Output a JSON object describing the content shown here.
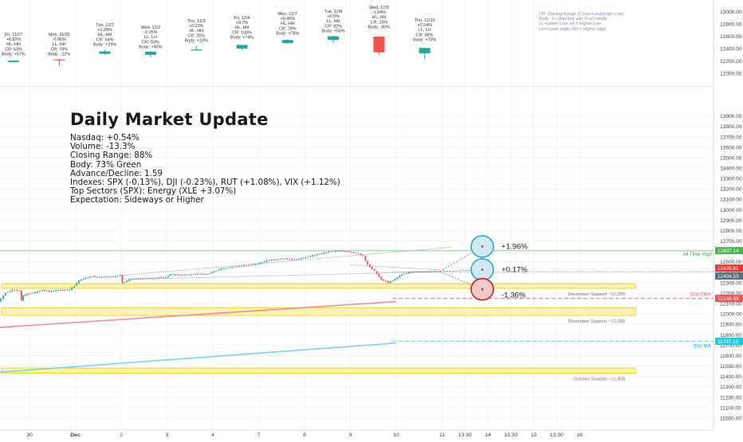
{
  "colors": {
    "bull": "#26a69a",
    "bear": "#ef5350",
    "price_line": "#2e3a46",
    "ath": "#9fd7a4",
    "ema21": "#f28c9b",
    "ma50": "#7fd3e6",
    "support_fill": "#fff3b0",
    "support_stroke": "#f0c419",
    "scenario_up_fill": "#cfe9f2",
    "scenario_up_stroke": "#2a9fc9",
    "scenario_down_fill": "#f6c9c9",
    "scenario_down_stroke": "#b71c1c"
  },
  "daily_stats": [
    {
      "date": "Fri, 11/27",
      "chg": "+0.92%",
      "hl": "HL, HH",
      "cr": "CR: 63%",
      "body": "Body: +57%",
      "o": 12180,
      "c": 12205,
      "h": 12212,
      "l": 12174
    },
    {
      "date": "Mon, 11/30",
      "chg": "-0.06%",
      "hl": "LL, HH",
      "cr": "CR: 79%",
      "body": "Body: -12%",
      "o": 12225,
      "c": 12213,
      "h": 12232,
      "l": 12120
    },
    {
      "date": "Tue, 12/1",
      "chg": "+1.28%",
      "hl": "HL, HH",
      "cr": "CR: 64%",
      "body": "Body: +29%",
      "o": 12315,
      "c": 12355,
      "h": 12380,
      "l": 12300
    },
    {
      "date": "Wed, 12/2",
      "chg": "-0.05%",
      "hl": "LL, LH",
      "cr": "CR: 93%",
      "body": "Body: +45%",
      "o": 12300,
      "c": 12350,
      "h": 12365,
      "l": 12255
    },
    {
      "date": "Thu, 12/3",
      "chg": "+0.23%",
      "hl": "HL, HH",
      "cr": "CR: 25%",
      "body": "Body: +10%",
      "o": 12375,
      "c": 12385,
      "h": 12455,
      "l": 12370
    },
    {
      "date": "Fri, 12/4",
      "chg": "+0.7%",
      "hl": "HL, HH",
      "cr": "CR: 100%",
      "body": "Body: +74%",
      "o": 12400,
      "c": 12460,
      "h": 12462,
      "l": 12380
    },
    {
      "date": "Mon, 12/7",
      "chg": "+0.45%",
      "hl": "HL, HH",
      "cr": "CR: 78%",
      "body": "Body: +78%",
      "o": 12490,
      "c": 12540,
      "h": 12552,
      "l": 12484
    },
    {
      "date": "Tue, 12/8",
      "chg": "+0.5%",
      "hl": "LL, HH",
      "cr": "CR: 92%",
      "body": "Body: +56%",
      "o": 12540,
      "c": 12600,
      "h": 12606,
      "l": 12490
    },
    {
      "date": "Wed, 12/9",
      "chg": "-1.94%",
      "hl": "HL, HH",
      "cr": "CR: 15%",
      "body": "Body: -80%",
      "o": 12595,
      "c": 12340,
      "h": 12602,
      "l": 12300
    },
    {
      "date": "Thu, 12/10",
      "chg": "+0.54%",
      "hl": "LL, LH",
      "cr": "CR: 88%",
      "body": "Body: +73%",
      "o": 12325,
      "c": 12410,
      "h": 12420,
      "l": 12230
    }
  ],
  "legend_note": [
    "CR: Closing Range (Close-Low)/(High-Low)",
    "Body: +/- direction and % of candle",
    "LL=Lower Low, HL= Higher Low",
    "LH=Lower High, HH = Higher High"
  ],
  "update": {
    "title": "Daily Market Update",
    "lines": [
      "Nasdaq: +0.54%",
      "Volume: -13.3%",
      "Closing Range: 88%",
      "Body: 73% Green",
      "Advance/Decline: 1.59",
      "Indexes: SPX (-0.13%), DJI (-0.23%), RUT (+1.08%), VIX (+1.12%)",
      "Top Sectors (SPX): Energy (XLE +3.07%)",
      "Expectation: Sideways or Higher"
    ]
  },
  "chart_data": [
    {
      "type": "candlestick",
      "ylim": [
        12000,
        13000
      ],
      "y_ticks": [
        "12000.00",
        "12200.00",
        "12400.00",
        "12600.00",
        "12800.00",
        "13000.00"
      ],
      "y_tick_values": [
        12000,
        12200,
        12400,
        12600,
        12800,
        13000
      ]
    },
    {
      "type": "line",
      "ylim": [
        10900,
        14100
      ],
      "y_ticks": [
        "11000.00",
        "11100.00",
        "11200.00",
        "11300.00",
        "11400.00",
        "11500.00",
        "11600.00",
        "11700.00",
        "11800.00",
        "11900.00",
        "12000.00",
        "12100.00",
        "12200.00",
        "12300.00",
        "12400.00",
        "12500.00",
        "12600.00",
        "12700.00",
        "12800.00",
        "12900.00",
        "13000.00",
        "13100.00",
        "13200.00",
        "13300.00",
        "13400.00",
        "13500.00",
        "13600.00",
        "13700.00",
        "13800.00",
        "13900.00"
      ],
      "y_tick_values": [
        11000,
        11100,
        11200,
        11300,
        11400,
        11500,
        11600,
        11700,
        11800,
        11900,
        12000,
        12100,
        12200,
        12300,
        12400,
        12500,
        12600,
        12700,
        12800,
        12900,
        13000,
        13100,
        13200,
        13300,
        13400,
        13500,
        13600,
        13700,
        13800,
        13900
      ],
      "x_ticks": [
        "30",
        "Dec",
        "2",
        "3",
        "4",
        "7",
        "8",
        "9",
        "10",
        "11",
        "13:30",
        "14",
        "13:30",
        "15",
        "13:30",
        "16"
      ],
      "x_tick_days": [
        0,
        1,
        2,
        3,
        4,
        5,
        6,
        7,
        8,
        9,
        9.5,
        10,
        10.5,
        11,
        11.5,
        12
      ],
      "price_series": {
        "x_days": [
          -0.65,
          -0.5,
          -0.35,
          -0.2,
          -0.15,
          -0.12,
          0,
          0.15,
          0.3,
          0.45,
          0.6,
          0.75,
          0.9,
          1.0,
          1.1,
          1.25,
          1.4,
          1.55,
          1.7,
          1.85,
          2.0,
          2.05,
          2.2,
          2.4,
          2.6,
          2.8,
          3.0,
          3.1,
          3.3,
          3.5,
          3.7,
          3.9,
          4.0,
          4.2,
          4.4,
          4.6,
          4.8,
          5.0,
          5.2,
          5.4,
          5.6,
          5.8,
          6.0,
          6.2,
          6.4,
          6.6,
          6.8,
          7.0,
          7.05,
          7.15,
          7.3,
          7.4,
          7.55,
          7.7,
          7.85,
          8.0,
          8.15,
          8.3,
          8.45,
          8.6,
          8.75,
          8.85,
          8.95
        ],
        "y": [
          12120,
          12200,
          12230,
          12220,
          12130,
          12175,
          12195,
          12205,
          12230,
          12215,
          12225,
          12228,
          12232,
          12270,
          12320,
          12345,
          12362,
          12350,
          12358,
          12355,
          12370,
          12295,
          12330,
          12338,
          12342,
          12345,
          12350,
          12380,
          12372,
          12376,
          12385,
          12380,
          12400,
          12432,
          12446,
          12455,
          12466,
          12482,
          12512,
          12522,
          12530,
          12520,
          12538,
          12560,
          12582,
          12600,
          12606,
          12595,
          12590,
          12585,
          12555,
          12470,
          12410,
          12330,
          12300,
          12335,
          12380,
          12395,
          12405,
          12402,
          12403,
          12410,
          12405
        ]
      },
      "all_time_high": {
        "label": "All Time High",
        "value": 12607.14,
        "tag": "12607.14"
      },
      "last_price_tags": [
        "12405.81",
        "12404.53"
      ],
      "supports": [
        {
          "label": "December Support ~12,250",
          "low": 12245,
          "high": 12290
        },
        {
          "label": "November Support ~12,000",
          "low": 11985,
          "high": 12060
        },
        {
          "label": "October Support ~11,400",
          "low": 11430,
          "high": 11480
        }
      ],
      "ema21": {
        "label": "21d EMA",
        "value": 12148.59,
        "tag": "12148.59",
        "x_days": [
          -0.65,
          8.0
        ],
        "y": [
          11870,
          12118
        ]
      },
      "ma50": {
        "label": "50d MA",
        "value": 11737.19,
        "tag": "11737.19",
        "x_days": [
          -0.65,
          8.0
        ],
        "y": [
          11440,
          11720
        ]
      },
      "scenarios": [
        {
          "label": "+1.96%",
          "value": 12647
        },
        {
          "label": "+0.17%",
          "value": 12425
        },
        {
          "label": "-1.36%",
          "value": 12236
        }
      ]
    }
  ]
}
